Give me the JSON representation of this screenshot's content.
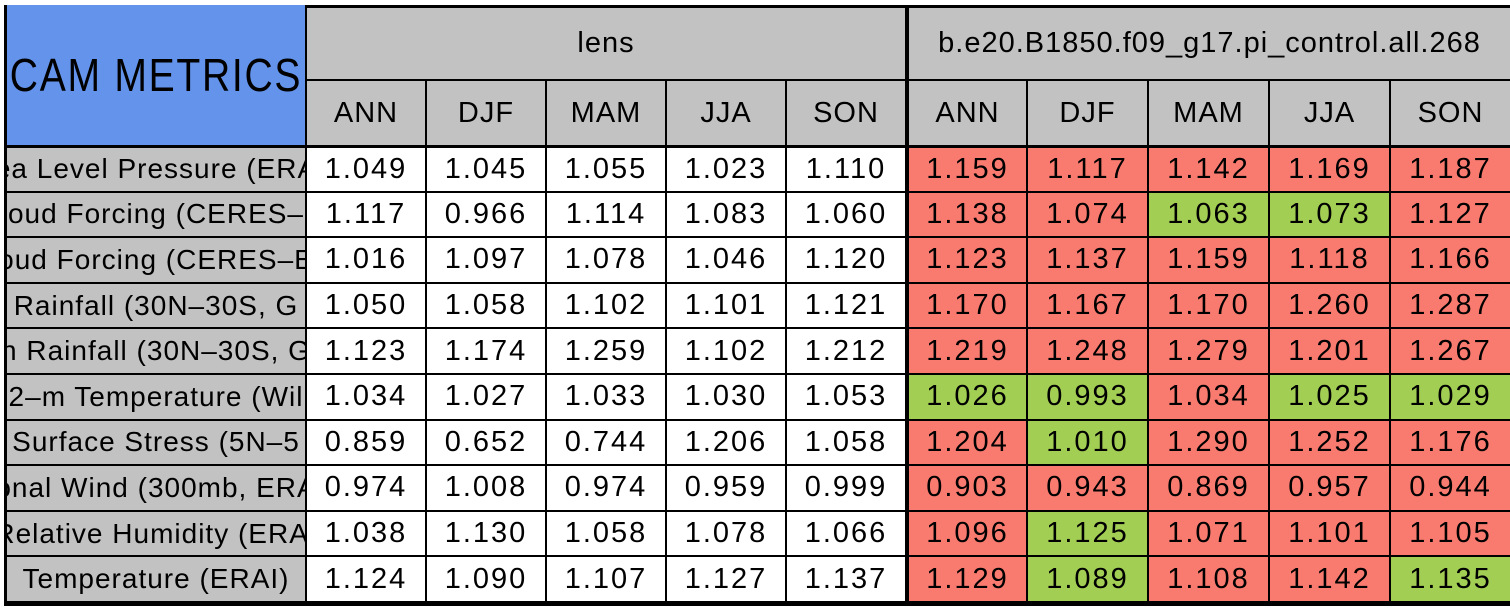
{
  "colors": {
    "header_blue": "#6493eb",
    "header_gray": "#c2c2c2",
    "cell_red": "#f97b70",
    "cell_green": "#a3ce54",
    "lens_cell_white": "#ffffff",
    "border_black": "#000000"
  },
  "chart_data": {
    "type": "table",
    "title": "CAM METRICS",
    "column_groups": [
      "lens",
      "b.e20.B1850.f09_g17.pi_control.all.268"
    ],
    "seasons": [
      "ANN",
      "DJF",
      "MAM",
      "JJA",
      "SON"
    ],
    "metrics": [
      "ea Level Pressure (ERA",
      "oud Forcing (CERES–",
      "oud Forcing (CERES–E",
      "Rainfall (30N–30S, G",
      "n Rainfall (30N–30S, G",
      "2–m Temperature (Wil",
      "Surface Stress (5N–5",
      "onal Wind (300mb, ERA",
      "Relative Humidity (ERAI",
      "Temperature (ERAI)"
    ],
    "series": [
      {
        "name": "lens",
        "values": [
          [
            "1.049",
            "1.045",
            "1.055",
            "1.023",
            "1.110"
          ],
          [
            "1.117",
            "0.966",
            "1.114",
            "1.083",
            "1.060"
          ],
          [
            "1.016",
            "1.097",
            "1.078",
            "1.046",
            "1.120"
          ],
          [
            "1.050",
            "1.058",
            "1.102",
            "1.101",
            "1.121"
          ],
          [
            "1.123",
            "1.174",
            "1.259",
            "1.102",
            "1.212"
          ],
          [
            "1.034",
            "1.027",
            "1.033",
            "1.030",
            "1.053"
          ],
          [
            "0.859",
            "0.652",
            "0.744",
            "1.206",
            "1.058"
          ],
          [
            "0.974",
            "1.008",
            "0.974",
            "0.959",
            "0.999"
          ],
          [
            "1.038",
            "1.130",
            "1.058",
            "1.078",
            "1.066"
          ],
          [
            "1.124",
            "1.090",
            "1.107",
            "1.127",
            "1.137"
          ]
        ],
        "cell_colors": [
          [
            "white",
            "white",
            "white",
            "white",
            "white"
          ],
          [
            "white",
            "white",
            "white",
            "white",
            "white"
          ],
          [
            "white",
            "white",
            "white",
            "white",
            "white"
          ],
          [
            "white",
            "white",
            "white",
            "white",
            "white"
          ],
          [
            "white",
            "white",
            "white",
            "white",
            "white"
          ],
          [
            "white",
            "white",
            "white",
            "white",
            "white"
          ],
          [
            "white",
            "white",
            "white",
            "white",
            "white"
          ],
          [
            "white",
            "white",
            "white",
            "white",
            "white"
          ],
          [
            "white",
            "white",
            "white",
            "white",
            "white"
          ],
          [
            "white",
            "white",
            "white",
            "white",
            "white"
          ]
        ]
      },
      {
        "name": "b.e20.B1850.f09_g17.pi_control.all.268",
        "values": [
          [
            "1.159",
            "1.117",
            "1.142",
            "1.169",
            "1.187"
          ],
          [
            "1.138",
            "1.074",
            "1.063",
            "1.073",
            "1.127"
          ],
          [
            "1.123",
            "1.137",
            "1.159",
            "1.118",
            "1.166"
          ],
          [
            "1.170",
            "1.167",
            "1.170",
            "1.260",
            "1.287"
          ],
          [
            "1.219",
            "1.248",
            "1.279",
            "1.201",
            "1.267"
          ],
          [
            "1.026",
            "0.993",
            "1.034",
            "1.025",
            "1.029"
          ],
          [
            "1.204",
            "1.010",
            "1.290",
            "1.252",
            "1.176"
          ],
          [
            "0.903",
            "0.943",
            "0.869",
            "0.957",
            "0.944"
          ],
          [
            "1.096",
            "1.125",
            "1.071",
            "1.101",
            "1.105"
          ],
          [
            "1.129",
            "1.089",
            "1.108",
            "1.142",
            "1.135"
          ]
        ],
        "cell_colors": [
          [
            "red",
            "red",
            "red",
            "red",
            "red"
          ],
          [
            "red",
            "red",
            "green",
            "green",
            "red"
          ],
          [
            "red",
            "red",
            "red",
            "red",
            "red"
          ],
          [
            "red",
            "red",
            "red",
            "red",
            "red"
          ],
          [
            "red",
            "red",
            "red",
            "red",
            "red"
          ],
          [
            "green",
            "green",
            "red",
            "green",
            "green"
          ],
          [
            "red",
            "green",
            "red",
            "red",
            "red"
          ],
          [
            "red",
            "red",
            "red",
            "red",
            "red"
          ],
          [
            "red",
            "green",
            "red",
            "red",
            "red"
          ],
          [
            "red",
            "green",
            "red",
            "red",
            "green"
          ]
        ]
      }
    ],
    "layout": {
      "grid_on": true,
      "legend_position": "none"
    }
  }
}
